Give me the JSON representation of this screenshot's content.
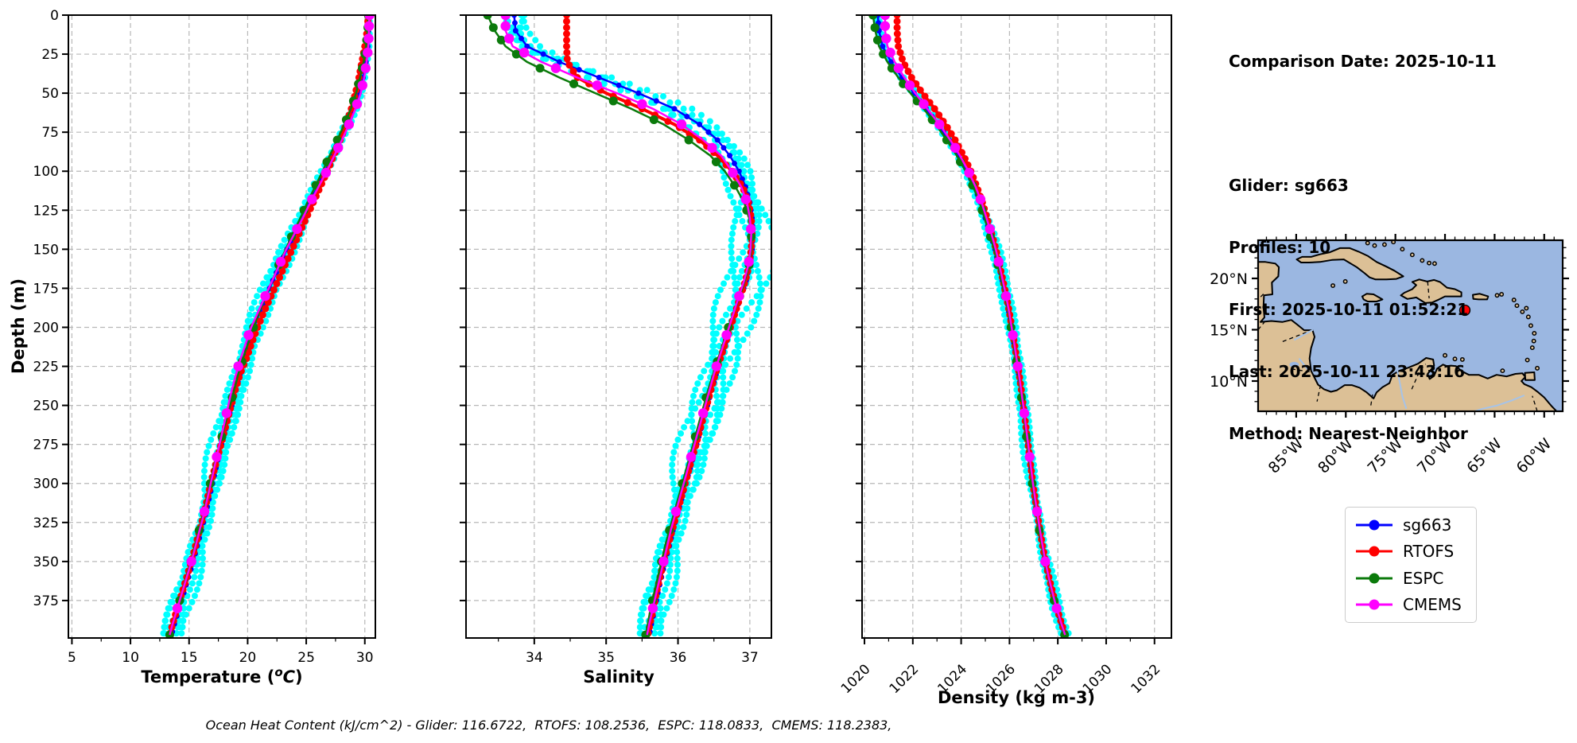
{
  "info": {
    "title": "Comparison Date: 2025-10-11",
    "lines": [
      "Glider: sg663",
      "Profiles: 10",
      "First: 2025-10-11 01:52:21",
      "Last: 2025-10-11 23:43:16",
      "Method: Nearest-Neighbor"
    ]
  },
  "footer": {
    "text": "Ocean Heat Content (kJ/cm^2) - Glider: 116.6722,  RTOFS: 108.2536,  ESPC: 118.0833,  CMEMS: 118.2383,"
  },
  "ylabel": "Depth (m)",
  "labels": {
    "temp_prefix": "Temperature (",
    "temp_sup": "o",
    "temp_c": "C",
    "temp_suffix": ")"
  },
  "legend": {
    "items": [
      {
        "label": "sg663",
        "color": "#0000ff"
      },
      {
        "label": "RTOFS",
        "color": "#ff0000"
      },
      {
        "label": "ESPC",
        "color": "#0b7a0b"
      },
      {
        "label": "CMEMS",
        "color": "#ff00ff"
      }
    ]
  },
  "map": {
    "lat_labels": [
      "20°N",
      "15°N",
      "10°N"
    ],
    "lat_values": [
      20,
      15,
      10
    ],
    "lon_labels": [
      "85°W",
      "80°W",
      "75°W",
      "70°W",
      "65°W",
      "60°W"
    ],
    "lon_values": [
      -85,
      -80,
      -75,
      -70,
      -65,
      -60
    ],
    "ocean_color": "#9bb7e1",
    "land_color": "#dcc096",
    "marker_color": "#ff0000",
    "marker_lon": -68.0,
    "marker_lat": 16.9
  },
  "chart_data": {
    "type": "line",
    "depths": [
      0,
      10,
      20,
      30,
      40,
      50,
      60,
      70,
      80,
      90,
      100,
      110,
      120,
      130,
      140,
      150,
      160,
      170,
      180,
      190,
      200,
      210,
      220,
      230,
      240,
      250,
      260,
      270,
      280,
      290,
      300,
      310,
      320,
      330,
      340,
      350,
      360,
      370,
      380,
      390,
      397
    ],
    "ylim": [
      0,
      399
    ],
    "yticks": [
      0,
      25,
      50,
      75,
      100,
      125,
      150,
      175,
      200,
      225,
      250,
      275,
      300,
      325,
      350,
      375
    ],
    "series_meta": [
      {
        "name": "sg663",
        "color": "#0000ff",
        "marker_r": 3.5,
        "line_w": 2.5,
        "marker_step": 5
      },
      {
        "name": "RTOFS",
        "color": "#ff0000",
        "marker_r": 4.5,
        "line_w": 4,
        "marker_step": 4
      },
      {
        "name": "ESPC",
        "color": "#0b7a0b",
        "marker_r": 5.5,
        "line_w": 2.5,
        "marker_depths": [
          0,
          8,
          16,
          25,
          34,
          44,
          55,
          67,
          80,
          94,
          109,
          125,
          142,
          160,
          180,
          200,
          222,
          245,
          270,
          300,
          330,
          350,
          375,
          397
        ]
      },
      {
        "name": "CMEMS",
        "color": "#ff00ff",
        "marker_r": 6.2,
        "line_w": 2.5,
        "marker_depths": [
          0,
          7,
          15,
          24,
          34,
          45,
          57,
          70,
          85,
          101,
          118,
          137,
          158,
          180,
          205,
          225,
          255,
          283,
          318,
          350,
          380
        ]
      }
    ],
    "scatter": {
      "name": "glider raw points",
      "color": "#00ffff",
      "copies": 6,
      "r": 4
    },
    "panels": [
      {
        "name": "temperature",
        "xlabel": "Temperature (°C)",
        "xlim": [
          4.7,
          30.9
        ],
        "xticks": [
          5,
          10,
          15,
          20,
          25,
          30
        ],
        "minor_step": 2.5,
        "amp_base": 0.15,
        "amp_slope": 0.95,
        "values": {
          "sg663": [
            30.35,
            30.3,
            30.25,
            30.1,
            29.85,
            29.5,
            29.05,
            28.5,
            27.9,
            27.25,
            26.6,
            25.95,
            25.3,
            24.65,
            24.0,
            23.35,
            22.75,
            22.15,
            21.6,
            21.05,
            20.55,
            20.1,
            19.7,
            19.35,
            19.0,
            18.65,
            18.3,
            17.95,
            17.6,
            17.3,
            17.0,
            16.7,
            16.4,
            16.05,
            15.7,
            15.35,
            14.95,
            14.55,
            14.15,
            13.75,
            13.5
          ],
          "RTOFS": [
            30.3,
            30.2,
            30.0,
            29.75,
            29.5,
            29.2,
            28.85,
            28.4,
            27.9,
            27.35,
            26.8,
            26.2,
            25.6,
            25.0,
            24.4,
            23.8,
            23.2,
            22.6,
            22.0,
            21.4,
            20.85,
            20.35,
            19.9,
            19.35,
            18.95,
            18.6,
            18.25,
            17.9,
            17.55,
            17.2,
            16.85,
            16.55,
            16.25,
            15.9,
            15.55,
            15.2,
            14.8,
            14.4,
            14.0,
            13.6,
            13.35
          ],
          "ESPC": [
            30.3,
            30.25,
            30.1,
            29.9,
            29.6,
            29.25,
            28.8,
            28.25,
            27.65,
            27.0,
            26.4,
            25.75,
            25.1,
            24.5,
            23.85,
            23.25,
            22.65,
            22.1,
            21.55,
            21.0,
            20.5,
            20.05,
            19.6,
            19.2,
            18.85,
            18.5,
            18.15,
            17.8,
            17.45,
            17.1,
            16.8,
            16.5,
            16.2,
            15.85,
            15.5,
            15.15,
            14.75,
            14.4,
            14.0,
            13.6,
            13.35
          ],
          "CMEMS": [
            30.4,
            30.35,
            30.3,
            30.15,
            29.95,
            29.65,
            29.2,
            28.65,
            28.05,
            27.4,
            26.75,
            26.05,
            25.35,
            24.7,
            24.0,
            23.3,
            22.7,
            22.1,
            21.5,
            20.9,
            20.3,
            19.85,
            19.4,
            19.0,
            18.65,
            18.35,
            18.05,
            17.75,
            17.45,
            17.15,
            16.85,
            16.55,
            16.25,
            15.9,
            15.55,
            15.2,
            14.8,
            14.4,
            14.0,
            13.6,
            13.35
          ]
        }
      },
      {
        "name": "salinity",
        "xlabel": "Salinity",
        "xlim": [
          33.05,
          37.3
        ],
        "xticks": [
          34,
          35,
          36,
          37
        ],
        "minor_step": 0.5,
        "amp_base": 0.26,
        "amp_slope": -0.06,
        "values": {
          "sg663": [
            33.72,
            33.74,
            33.9,
            34.35,
            34.9,
            35.45,
            35.95,
            36.3,
            36.55,
            36.72,
            36.85,
            36.94,
            37.0,
            37.03,
            37.04,
            37.03,
            37.0,
            36.95,
            36.88,
            36.8,
            36.73,
            36.66,
            36.6,
            36.53,
            36.47,
            36.41,
            36.35,
            36.29,
            36.23,
            36.17,
            36.11,
            36.05,
            35.99,
            35.93,
            35.88,
            35.82,
            35.77,
            35.72,
            35.68,
            35.63,
            35.6
          ],
          "RTOFS": [
            34.45,
            34.45,
            34.45,
            34.46,
            34.6,
            35.0,
            35.5,
            35.95,
            36.3,
            36.55,
            36.75,
            36.9,
            36.98,
            37.02,
            37.03,
            37.02,
            36.99,
            36.94,
            36.87,
            36.8,
            36.73,
            36.66,
            36.59,
            36.52,
            36.46,
            36.4,
            36.34,
            36.28,
            36.22,
            36.16,
            36.1,
            36.04,
            35.98,
            35.92,
            35.86,
            35.8,
            35.75,
            35.7,
            35.66,
            35.61,
            35.58
          ],
          "ESPC": [
            33.35,
            33.45,
            33.6,
            33.9,
            34.35,
            34.85,
            35.35,
            35.8,
            36.15,
            36.45,
            36.65,
            36.8,
            36.92,
            36.99,
            37.02,
            37.02,
            36.99,
            36.93,
            36.86,
            36.78,
            36.7,
            36.63,
            36.56,
            36.49,
            36.42,
            36.36,
            36.3,
            36.24,
            36.18,
            36.12,
            36.06,
            36.0,
            35.94,
            35.88,
            35.82,
            35.77,
            35.72,
            35.67,
            35.62,
            35.58,
            35.55
          ],
          "CMEMS": [
            33.6,
            33.6,
            33.7,
            34.1,
            34.6,
            35.15,
            35.65,
            36.05,
            36.35,
            36.6,
            36.75,
            36.88,
            36.96,
            37.0,
            37.02,
            37.01,
            36.98,
            36.92,
            36.85,
            36.78,
            36.71,
            36.64,
            36.57,
            36.5,
            36.44,
            36.38,
            36.32,
            36.26,
            36.2,
            36.14,
            36.08,
            36.02,
            35.96,
            35.9,
            35.85,
            35.8,
            35.75,
            35.7,
            35.65,
            35.6,
            35.57
          ]
        }
      },
      {
        "name": "density",
        "xlabel": "Density (kg m-3)",
        "xlim": [
          1019.9,
          1032.7
        ],
        "xticks": [
          1020,
          1022,
          1024,
          1026,
          1028,
          1030,
          1032
        ],
        "rotate_labels": 45,
        "minor_step": 1,
        "amp_base": 0.1,
        "amp_slope": 0.12,
        "values": {
          "sg663": [
            1020.55,
            1020.6,
            1020.75,
            1021.1,
            1021.55,
            1022.05,
            1022.55,
            1023.05,
            1023.5,
            1023.9,
            1024.25,
            1024.55,
            1024.8,
            1025.0,
            1025.2,
            1025.4,
            1025.55,
            1025.7,
            1025.85,
            1025.97,
            1026.08,
            1026.18,
            1026.28,
            1026.38,
            1026.47,
            1026.56,
            1026.64,
            1026.72,
            1026.8,
            1026.88,
            1026.96,
            1027.05,
            1027.15,
            1027.25,
            1027.36,
            1027.48,
            1027.62,
            1027.78,
            1027.95,
            1028.15,
            1028.3
          ],
          "RTOFS": [
            1021.35,
            1021.35,
            1021.4,
            1021.6,
            1021.95,
            1022.4,
            1022.9,
            1023.35,
            1023.75,
            1024.1,
            1024.4,
            1024.65,
            1024.88,
            1025.07,
            1025.26,
            1025.44,
            1025.59,
            1025.73,
            1025.87,
            1025.99,
            1026.1,
            1026.2,
            1026.3,
            1026.4,
            1026.49,
            1026.57,
            1026.65,
            1026.73,
            1026.81,
            1026.89,
            1026.97,
            1027.06,
            1027.16,
            1027.26,
            1027.37,
            1027.49,
            1027.63,
            1027.79,
            1027.96,
            1028.16,
            1028.31
          ],
          "ESPC": [
            1020.35,
            1020.45,
            1020.6,
            1020.95,
            1021.4,
            1021.9,
            1022.45,
            1022.95,
            1023.4,
            1023.82,
            1024.18,
            1024.5,
            1024.76,
            1024.97,
            1025.17,
            1025.37,
            1025.52,
            1025.67,
            1025.82,
            1025.95,
            1026.06,
            1026.16,
            1026.26,
            1026.36,
            1026.45,
            1026.54,
            1026.62,
            1026.7,
            1026.78,
            1026.86,
            1026.94,
            1027.03,
            1027.13,
            1027.23,
            1027.34,
            1027.46,
            1027.6,
            1027.76,
            1027.93,
            1028.13,
            1028.28
          ],
          "CMEMS": [
            1020.85,
            1020.85,
            1020.95,
            1021.25,
            1021.65,
            1022.1,
            1022.6,
            1023.1,
            1023.55,
            1023.95,
            1024.3,
            1024.6,
            1024.85,
            1025.05,
            1025.25,
            1025.43,
            1025.58,
            1025.72,
            1025.86,
            1025.98,
            1026.09,
            1026.19,
            1026.29,
            1026.39,
            1026.48,
            1026.57,
            1026.65,
            1026.73,
            1026.81,
            1026.89,
            1026.97,
            1027.06,
            1027.16,
            1027.26,
            1027.37,
            1027.48,
            1027.62,
            1027.78,
            1027.95,
            1028.15,
            1028.3
          ]
        }
      }
    ]
  }
}
